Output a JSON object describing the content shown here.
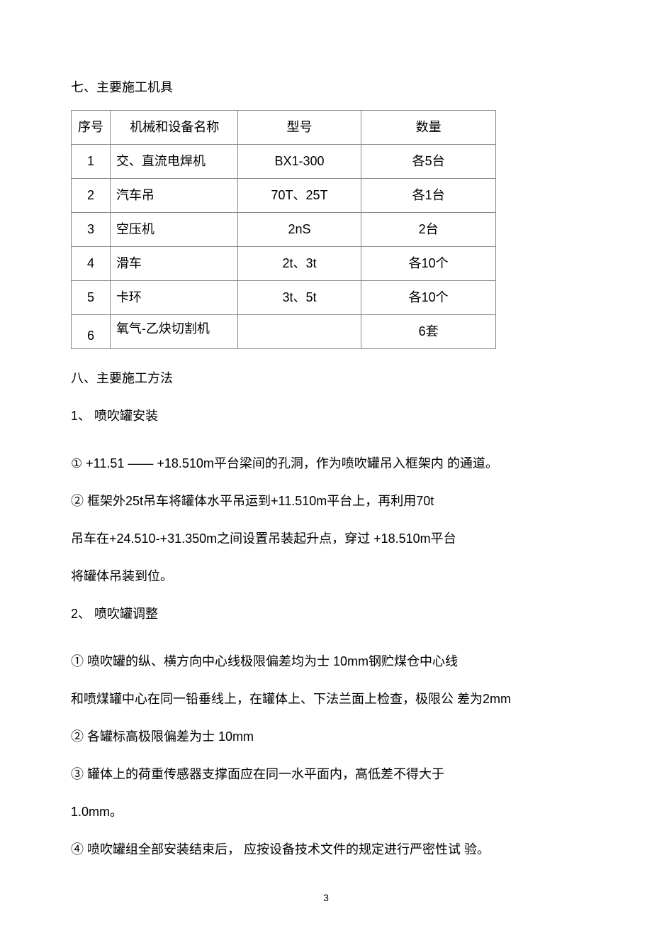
{
  "section7": {
    "title": "七、主要施工机具",
    "table": {
      "columns": [
        "序号",
        "机械和设备名称",
        "型号",
        "数量"
      ],
      "rows": [
        [
          "1",
          "交、直流电焊机",
          "BX1-300",
          "各5台"
        ],
        [
          "2",
          "汽车吊",
          "70T、25T",
          "各1台"
        ],
        [
          "3",
          "空压机",
          "2nS",
          "2台"
        ],
        [
          "4",
          "滑车",
          "2t、3t",
          "各10个"
        ],
        [
          "5",
          "卡环",
          "3t、5t",
          "各10个"
        ],
        [
          "6",
          "氧气-乙炔切割机",
          "",
          "6套"
        ]
      ]
    }
  },
  "section8": {
    "title": "八、主要施工方法",
    "sub1": "1、 喷吹罐安装",
    "p1": "① +11.51 —— +18.510m平台梁间的孔洞，作为喷吹罐吊入框架内 的通道。",
    "p2a": "② 框架外25t吊车将罐体水平吊运到+11.510m平台上，再利用70t",
    "p2b": "吊车在+24.510-+31.350m之间设置吊装起升点，穿过 +18.510m平台",
    "p2c": "将罐体吊装到位。",
    "sub2": "2、 喷吹罐调整",
    "q1": "① 喷吹罐的纵、横方向中心线极限偏差均为士 10mm钢贮煤仓中心线",
    "q2": "和喷煤罐中心在同一铅垂线上，在罐体上、下法兰面上检查，极限公 差为2mm",
    "q3": "② 各罐标高极限偏差为士 10mm",
    "q4": "③ 罐体上的荷重传感器支撑面应在同一水平面内，高低差不得大于",
    "q5": "1.0mm。",
    "q6": "④  喷吹罐组全部安装结束后， 应按设备技术文件的规定进行严密性试 验。"
  },
  "pageNumber": "3"
}
